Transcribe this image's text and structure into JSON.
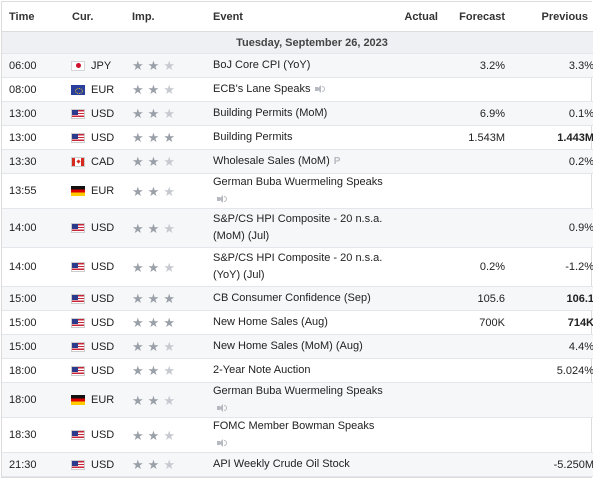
{
  "headers": {
    "time": "Time",
    "currency": "Cur.",
    "importance": "Imp.",
    "event": "Event",
    "actual": "Actual",
    "forecast": "Forecast",
    "previous": "Previous"
  },
  "date_label": "Tuesday, September 26, 2023",
  "colors": {
    "star_on": "#9aa0a8",
    "star_off": "#c6cad0",
    "date_row_bg": "#eef0f4"
  },
  "rows": [
    {
      "time": "06:00",
      "currency": "JPY",
      "flag": "jp-flag",
      "importance": 2,
      "event": "BoJ Core CPI (YoY)",
      "icon": "",
      "actual": "",
      "forecast": "3.2%",
      "previous": "3.3%",
      "bold_prev": false
    },
    {
      "time": "08:00",
      "currency": "EUR",
      "flag": "eu-flag",
      "importance": 2,
      "event": "ECB's Lane Speaks",
      "icon": "speaker-icon",
      "actual": "",
      "forecast": "",
      "previous": "",
      "bold_prev": false
    },
    {
      "time": "13:00",
      "currency": "USD",
      "flag": "us-flag",
      "importance": 2,
      "event": "Building Permits (MoM)",
      "icon": "",
      "actual": "",
      "forecast": "6.9%",
      "previous": "0.1%",
      "bold_prev": false
    },
    {
      "time": "13:00",
      "currency": "USD",
      "flag": "us-flag",
      "importance": 3,
      "event": "Building Permits",
      "icon": "",
      "actual": "",
      "forecast": "1.543M",
      "previous": "1.443M",
      "bold_prev": true
    },
    {
      "time": "13:30",
      "currency": "CAD",
      "flag": "ca-flag",
      "importance": 2,
      "event": "Wholesale Sales (MoM)",
      "icon": "preliminary-icon",
      "actual": "",
      "forecast": "",
      "previous": "0.2%",
      "bold_prev": false
    },
    {
      "time": "13:55",
      "currency": "EUR",
      "flag": "de-flag",
      "importance": 2,
      "event": "German Buba Wuermeling Speaks",
      "icon": "speaker-icon",
      "actual": "",
      "forecast": "",
      "previous": "",
      "bold_prev": false
    },
    {
      "time": "14:00",
      "currency": "USD",
      "flag": "us-flag",
      "importance": 2,
      "event": "S&P/CS HPI Composite - 20 n.s.a. (MoM) (Jul)",
      "icon": "",
      "actual": "",
      "forecast": "",
      "previous": "0.9%",
      "bold_prev": false
    },
    {
      "time": "14:00",
      "currency": "USD",
      "flag": "us-flag",
      "importance": 2,
      "event": "S&P/CS HPI Composite - 20 n.s.a. (YoY) (Jul)",
      "icon": "",
      "actual": "",
      "forecast": "0.2%",
      "previous": "-1.2%",
      "bold_prev": false
    },
    {
      "time": "15:00",
      "currency": "USD",
      "flag": "us-flag",
      "importance": 3,
      "event": "CB Consumer Confidence (Sep)",
      "icon": "",
      "actual": "",
      "forecast": "105.6",
      "previous": "106.1",
      "bold_prev": true
    },
    {
      "time": "15:00",
      "currency": "USD",
      "flag": "us-flag",
      "importance": 3,
      "event": "New Home Sales (Aug)",
      "icon": "",
      "actual": "",
      "forecast": "700K",
      "previous": "714K",
      "bold_prev": true
    },
    {
      "time": "15:00",
      "currency": "USD",
      "flag": "us-flag",
      "importance": 2,
      "event": "New Home Sales (MoM) (Aug)",
      "icon": "",
      "actual": "",
      "forecast": "",
      "previous": "4.4%",
      "bold_prev": false
    },
    {
      "time": "18:00",
      "currency": "USD",
      "flag": "us-flag",
      "importance": 2,
      "event": "2-Year Note Auction",
      "icon": "",
      "actual": "",
      "forecast": "",
      "previous": "5.024%",
      "bold_prev": false
    },
    {
      "time": "18:00",
      "currency": "EUR",
      "flag": "de-flag",
      "importance": 2,
      "event": "German Buba Wuermeling Speaks",
      "icon": "speaker-icon",
      "actual": "",
      "forecast": "",
      "previous": "",
      "bold_prev": false
    },
    {
      "time": "18:30",
      "currency": "USD",
      "flag": "us-flag",
      "importance": 2,
      "event": "FOMC Member Bowman Speaks",
      "icon": "speaker-icon",
      "actual": "",
      "forecast": "",
      "previous": "",
      "bold_prev": false
    },
    {
      "time": "21:30",
      "currency": "USD",
      "flag": "us-flag",
      "importance": 2,
      "event": "API Weekly Crude Oil Stock",
      "icon": "",
      "actual": "",
      "forecast": "",
      "previous": "-5.250M",
      "bold_prev": false
    }
  ]
}
